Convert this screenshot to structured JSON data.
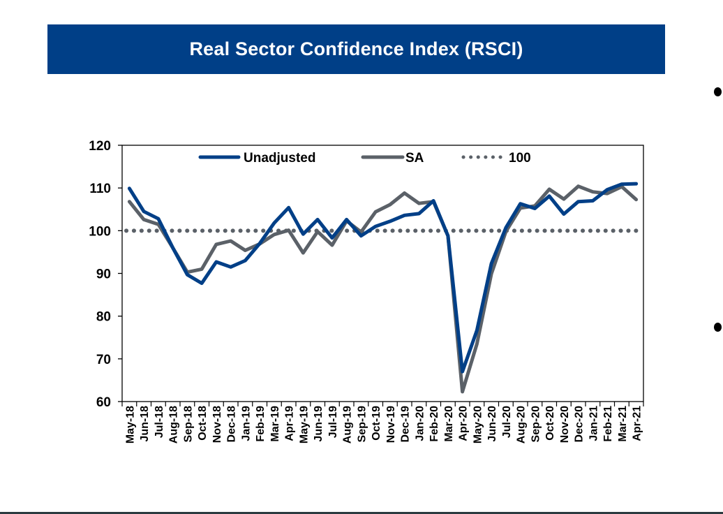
{
  "slide": {
    "title": "Real Sector Confidence Index (RSCI)",
    "bullet_count": 2
  },
  "colors": {
    "banner": "#003f87",
    "unadjusted": "#003f87",
    "sa": "#5b6168",
    "reference": "#5b6168"
  },
  "chart_data": {
    "type": "line",
    "title": "Real Sector Confidence Index (RSCI)",
    "xlabel": "",
    "ylabel": "",
    "ylim": [
      60,
      120
    ],
    "yticks": [
      60,
      70,
      80,
      90,
      100,
      110,
      120
    ],
    "grid": false,
    "legend": {
      "placement": "top",
      "entries": [
        "Unadjusted",
        "SA",
        "100"
      ]
    },
    "categories": [
      "May-18",
      "Jun-18",
      "Jul-18",
      "Aug-18",
      "Sep-18",
      "Oct-18",
      "Nov-18",
      "Dec-18",
      "Jan-19",
      "Feb-19",
      "Mar-19",
      "Apr-19",
      "May-19",
      "Jun-19",
      "Jul-19",
      "Aug-19",
      "Sep-19",
      "Oct-19",
      "Nov-19",
      "Dec-19",
      "Jan-20",
      "Feb-20",
      "Mar-20",
      "Apr-20",
      "May-20",
      "Jun-20",
      "Jul-20",
      "Aug-20",
      "Sep-20",
      "Oct-20",
      "Nov-20",
      "Dec-20",
      "Jan-21",
      "Feb-21",
      "Mar-21",
      "Apr-21"
    ],
    "series": [
      {
        "name": "Unadjusted",
        "style": "solid",
        "values": [
          109.9,
          104.5,
          102.8,
          96.0,
          89.7,
          87.7,
          92.7,
          91.5,
          93.0,
          97.0,
          101.8,
          105.4,
          99.2,
          102.6,
          98.3,
          102.6,
          98.8,
          101.0,
          102.2,
          103.6,
          104.0,
          107.0,
          98.8,
          67.0,
          76.7,
          92.3,
          100.7,
          106.3,
          105.2,
          108.1,
          103.9,
          106.8,
          107.0,
          109.6,
          110.9,
          111.0
        ]
      },
      {
        "name": "SA",
        "style": "solid",
        "values": [
          106.8,
          102.6,
          101.5,
          96.0,
          90.3,
          91.0,
          96.8,
          97.6,
          95.4,
          96.9,
          99.1,
          100.1,
          94.8,
          99.8,
          96.6,
          102.3,
          99.7,
          104.4,
          106.1,
          108.8,
          106.4,
          106.8,
          98.8,
          62.3,
          73.5,
          89.9,
          99.8,
          105.3,
          105.8,
          109.7,
          107.4,
          110.4,
          109.1,
          108.7,
          110.3,
          107.3
        ]
      },
      {
        "name": "100",
        "style": "dotted",
        "values": [
          100,
          100,
          100,
          100,
          100,
          100,
          100,
          100,
          100,
          100,
          100,
          100,
          100,
          100,
          100,
          100,
          100,
          100,
          100,
          100,
          100,
          100,
          100,
          100,
          100,
          100,
          100,
          100,
          100,
          100,
          100,
          100,
          100,
          100,
          100,
          100
        ]
      }
    ]
  }
}
